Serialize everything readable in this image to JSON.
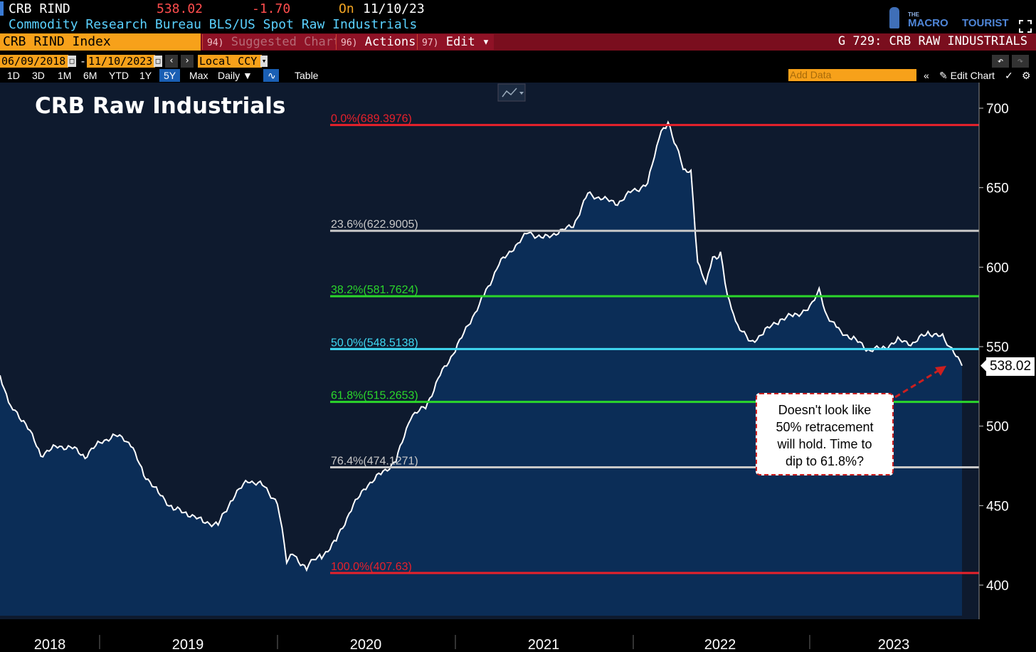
{
  "header": {
    "ticker": "CRB RIND",
    "last_price": "538.02",
    "change": "-1.70",
    "on_label": "On",
    "date": "11/10/23",
    "description": "Commodity Research Bureau BLS/US Spot Raw Industrials"
  },
  "brand": {
    "the": "THE",
    "macro": "MACRO",
    "tourist": "TOURIST"
  },
  "command_bar": {
    "security": "CRB RIND Index",
    "suggested_num": "94)",
    "suggested_label": "Suggested Charts",
    "actions_num": "96)",
    "actions_label": "Actions ▾",
    "edit_num": "97)",
    "edit_label": "Edit ▾",
    "graph_title": "G 729: CRB RAW INDUSTRIALS"
  },
  "date_range": {
    "start": "06/09/2018",
    "separator": "-",
    "end": "11/10/2023",
    "currency": "Local CCY"
  },
  "periods": [
    "1D",
    "3D",
    "1M",
    "6M",
    "YTD",
    "1Y",
    "5Y",
    "Max"
  ],
  "active_period": "5Y",
  "frequency": "Daily ▼",
  "table_label": "Table",
  "add_data_placeholder": "Add Data",
  "edit_chart_label": "Edit Chart",
  "colors": {
    "background": "#0e1a2e",
    "fill": "#0b2d57",
    "line": "#ffffff",
    "fib_red": "#e8212b",
    "fib_grey": "#c8c8c8",
    "fib_green": "#2bd62b",
    "fib_cyan": "#3fd8f2"
  },
  "annotation": "Doesn't look like 50% retracement will hold. Time to dip to 61.8%?",
  "annotation_lines": [
    "Doesn't look like",
    "50% retracement",
    "will hold. Time to",
    "dip to 61.8%?"
  ],
  "chart_data": {
    "type": "area",
    "title": "CRB Raw Industrials",
    "ylim": [
      380,
      700
    ],
    "yticks": [
      400,
      450,
      500,
      550,
      600,
      650,
      700
    ],
    "xlim": [
      "2018-06-09",
      "2023-11-10"
    ],
    "xticks": [
      "2018",
      "2019",
      "2020",
      "2021",
      "2022",
      "2023"
    ],
    "grid": false,
    "last_value": "538.02",
    "fib_levels": [
      {
        "label": "0.0%(689.3976)",
        "value": 689.3976,
        "color": "fib_red"
      },
      {
        "label": "23.6%(622.9005)",
        "value": 622.9005,
        "color": "fib_grey"
      },
      {
        "label": "38.2%(581.7624)",
        "value": 581.7624,
        "color": "fib_green"
      },
      {
        "label": "50.0%(548.5138)",
        "value": 548.5138,
        "color": "fib_cyan"
      },
      {
        "label": "61.8%(515.2653)",
        "value": 515.2653,
        "color": "fib_green"
      },
      {
        "label": "76.4%(474.1271)",
        "value": 474.1271,
        "color": "fib_grey"
      },
      {
        "label": "100.0%(407.63)",
        "value": 407.63,
        "color": "fib_red"
      }
    ],
    "series": [
      {
        "x": [
          "2018-06-09",
          "2018-07-01",
          "2018-08-01",
          "2018-09-01",
          "2018-10-01",
          "2018-11-01",
          "2018-12-01",
          "2019-01-01",
          "2019-02-01",
          "2019-03-01",
          "2019-04-01",
          "2019-05-01",
          "2019-06-01",
          "2019-07-01",
          "2019-08-01",
          "2019-09-01",
          "2019-10-01",
          "2019-11-01",
          "2019-12-01",
          "2020-01-01",
          "2020-01-20",
          "2020-02-01",
          "2020-03-01",
          "2020-03-20",
          "2020-04-01",
          "2020-05-01",
          "2020-06-01",
          "2020-07-01",
          "2020-08-01",
          "2020-09-01",
          "2020-10-01",
          "2020-11-01",
          "2020-12-01",
          "2021-01-01",
          "2021-02-01",
          "2021-03-01",
          "2021-04-01",
          "2021-05-01",
          "2021-06-01",
          "2021-07-01",
          "2021-08-01",
          "2021-09-01",
          "2021-10-01",
          "2021-11-01",
          "2021-12-01",
          "2022-01-01",
          "2022-02-01",
          "2022-02-15",
          "2022-03-01",
          "2022-03-15",
          "2022-04-01",
          "2022-04-15",
          "2022-05-01",
          "2022-05-15",
          "2022-06-01",
          "2022-06-15",
          "2022-07-01",
          "2022-07-15",
          "2022-08-01",
          "2022-09-01",
          "2022-10-01",
          "2022-11-01",
          "2022-12-01",
          "2023-01-01",
          "2023-01-20",
          "2023-02-01",
          "2023-03-01",
          "2023-04-01",
          "2023-05-01",
          "2023-06-01",
          "2023-07-01",
          "2023-08-01",
          "2023-09-01",
          "2023-10-01",
          "2023-10-20",
          "2023-11-10"
        ],
        "y": [
          532,
          512,
          502,
          482,
          487,
          487,
          481,
          490,
          494,
          491,
          470,
          458,
          448,
          445,
          440,
          438,
          455,
          466,
          463,
          452,
          416,
          420,
          410,
          418,
          418,
          428,
          448,
          462,
          470,
          478,
          506,
          512,
          532,
          548,
          566,
          582,
          602,
          612,
          622,
          618,
          622,
          626,
          646,
          643,
          640,
          648,
          652,
          670,
          686,
          690,
          676,
          662,
          660,
          602,
          590,
          606,
          608,
          582,
          566,
          552,
          560,
          567,
          570,
          574,
          586,
          572,
          560,
          555,
          548,
          549,
          554,
          552,
          559,
          556,
          548,
          538
        ]
      }
    ]
  }
}
